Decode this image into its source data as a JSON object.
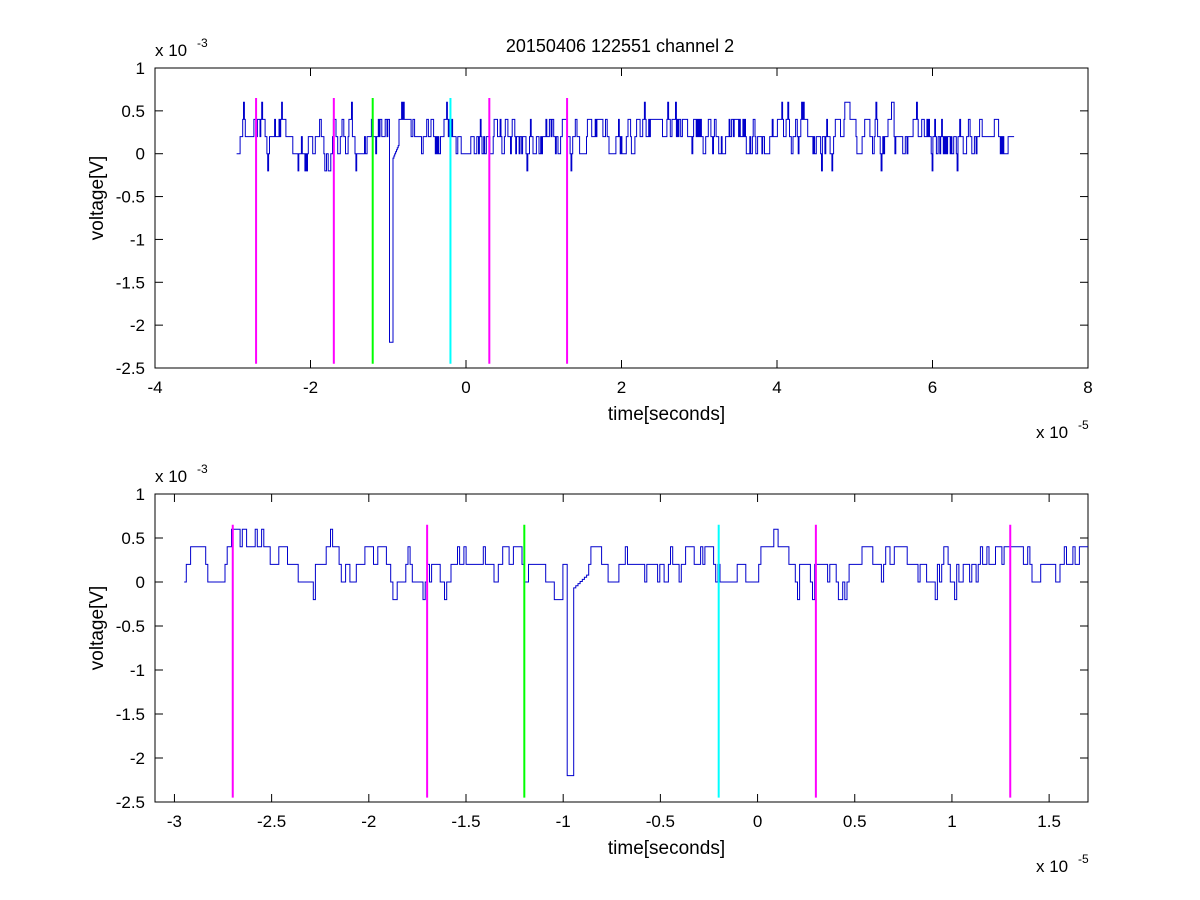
{
  "figure": {
    "title": "20150406 122551 channel 2"
  },
  "chart_data": [
    {
      "type": "line",
      "xlabel": "time[seconds]",
      "ylabel": "voltage[V]",
      "x_exponent": {
        "base": "x 10",
        "power": "-5"
      },
      "y_exponent": {
        "base": "x 10",
        "power": "-3"
      },
      "xlim": [
        -4,
        8
      ],
      "ylim": [
        -2.5,
        1
      ],
      "x_ticks": [
        -4,
        -2,
        0,
        2,
        4,
        6,
        8
      ],
      "x_tick_labels": [
        "-4",
        "-2",
        "0",
        "2",
        "4",
        "6",
        "8"
      ],
      "y_ticks": [
        1,
        0.5,
        0,
        -0.5,
        -1,
        -1.5,
        -2,
        -2.5
      ],
      "y_tick_labels": [
        "1",
        "0.5",
        "0",
        "-0.5",
        "-1",
        "-1.5",
        "-2",
        "-2.5"
      ],
      "signal": {
        "color": "#0000cc",
        "x_start": -2.95,
        "x_end": 7.05,
        "levels": [
          -0.2,
          0,
          0.2,
          0.4,
          0.6
        ],
        "spike": {
          "x": -0.97,
          "min": -2.2
        }
      },
      "markers": [
        {
          "x": -2.7,
          "color": "#ff00ff",
          "top": 0.65,
          "bottom": -2.45
        },
        {
          "x": -1.7,
          "color": "#ff00ff",
          "top": 0.65,
          "bottom": -2.45
        },
        {
          "x": -1.2,
          "color": "#00ff00",
          "top": 0.65,
          "bottom": -2.45
        },
        {
          "x": -0.2,
          "color": "#00ffff",
          "top": 0.65,
          "bottom": -2.45
        },
        {
          "x": 0.3,
          "color": "#ff00ff",
          "top": 0.65,
          "bottom": -2.45
        },
        {
          "x": 1.3,
          "color": "#ff00ff",
          "top": 0.65,
          "bottom": -2.45
        }
      ]
    },
    {
      "type": "line",
      "xlabel": "time[seconds]",
      "ylabel": "voltage[V]",
      "x_exponent": {
        "base": "x 10",
        "power": "-5"
      },
      "y_exponent": {
        "base": "x 10",
        "power": "-3"
      },
      "xlim": [
        -3.1,
        1.7
      ],
      "ylim": [
        -2.5,
        1
      ],
      "x_ticks": [
        -3,
        -2.5,
        -2,
        -1.5,
        -1,
        -0.5,
        0,
        0.5,
        1,
        1.5
      ],
      "x_tick_labels": [
        "-3",
        "-2.5",
        "-2",
        "-1.5",
        "-1",
        "-0.5",
        "0",
        "0.5",
        "1",
        "1.5"
      ],
      "y_ticks": [
        1,
        0.5,
        0,
        -0.5,
        -1,
        -1.5,
        -2,
        -2.5
      ],
      "y_tick_labels": [
        "1",
        "0.5",
        "0",
        "-0.5",
        "-1",
        "-1.5",
        "-2",
        "-2.5"
      ],
      "signal": {
        "color": "#0000cc",
        "x_start": -2.95,
        "x_end": 1.7,
        "levels": [
          -0.2,
          0,
          0.2,
          0.4,
          0.6
        ],
        "spike": {
          "x": -0.97,
          "min": -2.2
        }
      },
      "markers": [
        {
          "x": -2.7,
          "color": "#ff00ff",
          "top": 0.65,
          "bottom": -2.45
        },
        {
          "x": -1.7,
          "color": "#ff00ff",
          "top": 0.65,
          "bottom": -2.45
        },
        {
          "x": -1.2,
          "color": "#00ff00",
          "top": 0.65,
          "bottom": -2.45
        },
        {
          "x": -0.2,
          "color": "#00ffff",
          "top": 0.65,
          "bottom": -2.45
        },
        {
          "x": 0.3,
          "color": "#ff00ff",
          "top": 0.65,
          "bottom": -2.45
        },
        {
          "x": 1.3,
          "color": "#ff00ff",
          "top": 0.65,
          "bottom": -2.45
        }
      ]
    }
  ]
}
